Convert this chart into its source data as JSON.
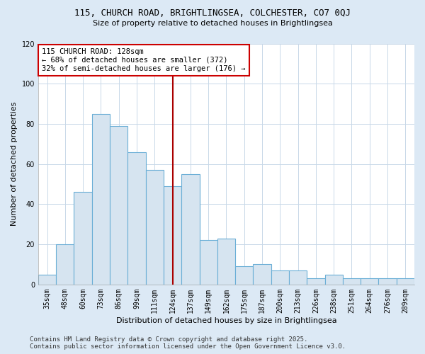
{
  "title": "115, CHURCH ROAD, BRIGHTLINGSEA, COLCHESTER, CO7 0QJ",
  "subtitle": "Size of property relative to detached houses in Brightlingsea",
  "xlabel": "Distribution of detached houses by size in Brightlingsea",
  "ylabel": "Number of detached properties",
  "categories": [
    "35sqm",
    "48sqm",
    "60sqm",
    "73sqm",
    "86sqm",
    "99sqm",
    "111sqm",
    "124sqm",
    "137sqm",
    "149sqm",
    "162sqm",
    "175sqm",
    "187sqm",
    "200sqm",
    "213sqm",
    "226sqm",
    "238sqm",
    "251sqm",
    "264sqm",
    "276sqm",
    "289sqm"
  ],
  "values": [
    5,
    20,
    46,
    85,
    79,
    66,
    57,
    49,
    55,
    22,
    23,
    9,
    10,
    7,
    7,
    3,
    5,
    3,
    3,
    3,
    3
  ],
  "bar_color": "#d6e4f0",
  "bar_edge_color": "#6aaed6",
  "vline_x_index": 7,
  "vline_color": "#aa0000",
  "vline_label": "115 CHURCH ROAD: 128sqm",
  "annotation_line1": "← 68% of detached houses are smaller (372)",
  "annotation_line2": "32% of semi-detached houses are larger (176) →",
  "annotation_box_color": "#ffffff",
  "annotation_box_edge_color": "#cc0000",
  "footer_line1": "Contains HM Land Registry data © Crown copyright and database right 2025.",
  "footer_line2": "Contains public sector information licensed under the Open Government Licence v3.0.",
  "ylim": [
    0,
    120
  ],
  "yticks": [
    0,
    20,
    40,
    60,
    80,
    100,
    120
  ],
  "fig_background_color": "#dce9f5",
  "plot_background_color": "#ffffff",
  "grid_color": "#c8d8e8",
  "title_fontsize": 9,
  "subtitle_fontsize": 8,
  "axis_label_fontsize": 8,
  "tick_fontsize": 7,
  "annotation_fontsize": 7.5,
  "footer_fontsize": 6.5
}
